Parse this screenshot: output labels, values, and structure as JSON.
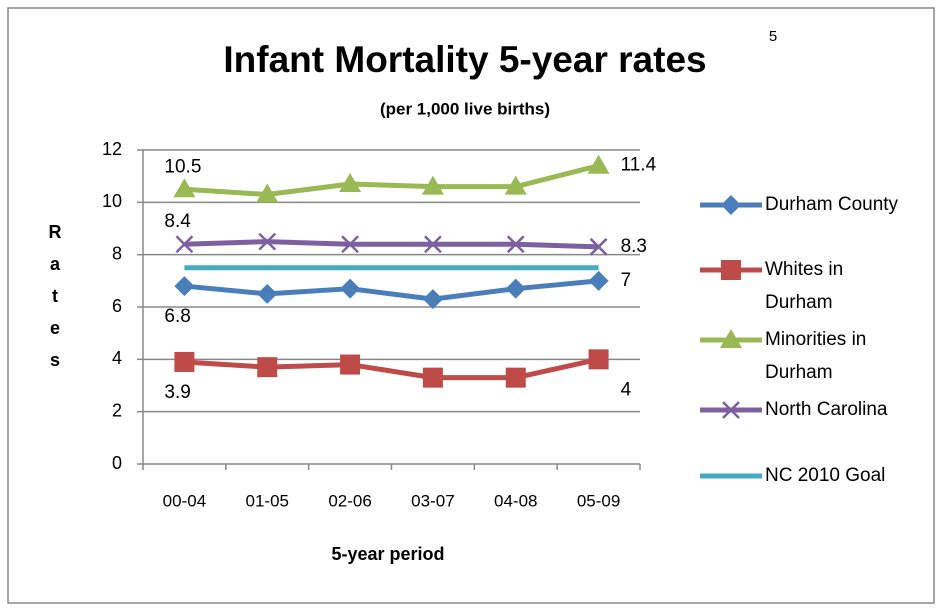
{
  "chart_data": {
    "type": "line",
    "title": "Infant Mortality 5-year rates",
    "title_superscript": "5",
    "subtitle": "(per 1,000 live births)",
    "x_label": "5-year period",
    "y_label": "Rates",
    "categories": [
      "00-04",
      "01-05",
      "02-06",
      "03-07",
      "04-08",
      "05-09"
    ],
    "series": [
      {
        "name": "Durham County",
        "color": "#4a7ebb",
        "marker": "diamond",
        "values": [
          6.8,
          6.5,
          6.7,
          6.3,
          6.7,
          7.0
        ],
        "value_labels": [
          "6.8",
          null,
          null,
          null,
          null,
          "7"
        ]
      },
      {
        "name": "Whites in Durham",
        "color": "#be4b48",
        "marker": "square",
        "values": [
          3.9,
          3.7,
          3.8,
          3.3,
          3.3,
          4.0
        ],
        "value_labels": [
          "3.9",
          null,
          null,
          null,
          null,
          "4"
        ]
      },
      {
        "name": "Minorities in Durham",
        "color": "#98b954",
        "marker": "triangle",
        "values": [
          10.5,
          10.3,
          10.7,
          10.6,
          10.6,
          11.4
        ],
        "value_labels": [
          "10.5",
          null,
          null,
          null,
          null,
          "11.4"
        ]
      },
      {
        "name": "North Carolina",
        "color": "#7d60a0",
        "marker": "x",
        "values": [
          8.4,
          8.5,
          8.4,
          8.4,
          8.4,
          8.3
        ],
        "value_labels": [
          "8.4",
          null,
          null,
          null,
          null,
          "8.3"
        ]
      },
      {
        "name": "NC 2010 Goal",
        "color": "#46aac5",
        "marker": "none",
        "values": [
          7.5,
          7.5,
          7.5,
          7.5,
          7.5,
          7.5
        ]
      }
    ],
    "ylim": [
      0,
      12
    ],
    "yticks": [
      0,
      2,
      4,
      6,
      8,
      10,
      12
    ],
    "grid": true
  }
}
